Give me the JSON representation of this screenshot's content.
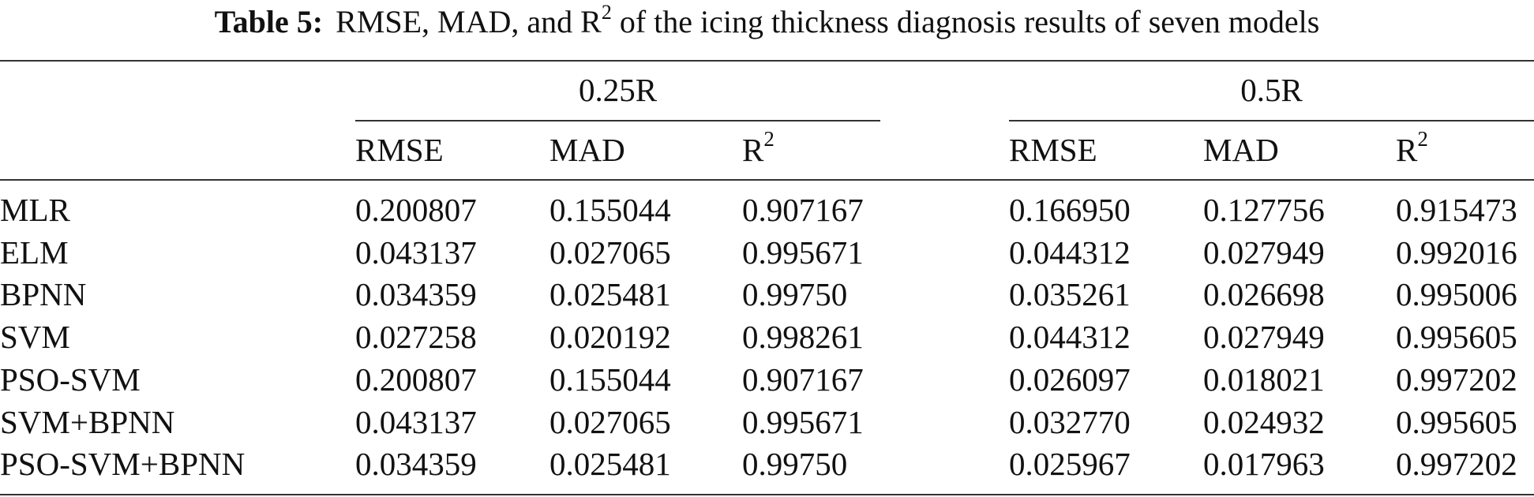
{
  "caption": {
    "label": "Table 5:",
    "text_before": "RMSE, MAD, and R",
    "text_sup": "2",
    "text_after": " of the icing thickness diagnosis results of seven models"
  },
  "table": {
    "groups": [
      {
        "label": "0.25R",
        "columns": [
          {
            "text": "RMSE",
            "sup": ""
          },
          {
            "text": "MAD",
            "sup": ""
          },
          {
            "text": "R",
            "sup": "2"
          }
        ]
      },
      {
        "label": "0.5R",
        "columns": [
          {
            "text": "RMSE",
            "sup": ""
          },
          {
            "text": "MAD",
            "sup": ""
          },
          {
            "text": "R",
            "sup": "2"
          }
        ]
      }
    ],
    "rows": [
      {
        "model": "MLR",
        "values": [
          "0.200807",
          "0.155044",
          "0.907167",
          "0.166950",
          "0.127756",
          "0.915473"
        ]
      },
      {
        "model": "ELM",
        "values": [
          "0.043137",
          "0.027065",
          "0.995671",
          "0.044312",
          "0.027949",
          "0.992016"
        ]
      },
      {
        "model": "BPNN",
        "values": [
          "0.034359",
          "0.025481",
          "0.99750",
          "0.035261",
          "0.026698",
          "0.995006"
        ]
      },
      {
        "model": "SVM",
        "values": [
          "0.027258",
          "0.020192",
          "0.998261",
          "0.044312",
          "0.027949",
          "0.995605"
        ]
      },
      {
        "model": "PSO-SVM",
        "values": [
          "0.200807",
          "0.155044",
          "0.907167",
          "0.026097",
          "0.018021",
          "0.997202"
        ]
      },
      {
        "model": "SVM+BPNN",
        "values": [
          "0.043137",
          "0.027065",
          "0.995671",
          "0.032770",
          "0.024932",
          "0.995605"
        ]
      },
      {
        "model": "PSO-SVM+BPNN",
        "values": [
          "0.034359",
          "0.025481",
          "0.99750",
          "0.025967",
          "0.017963",
          "0.997202"
        ]
      }
    ]
  }
}
